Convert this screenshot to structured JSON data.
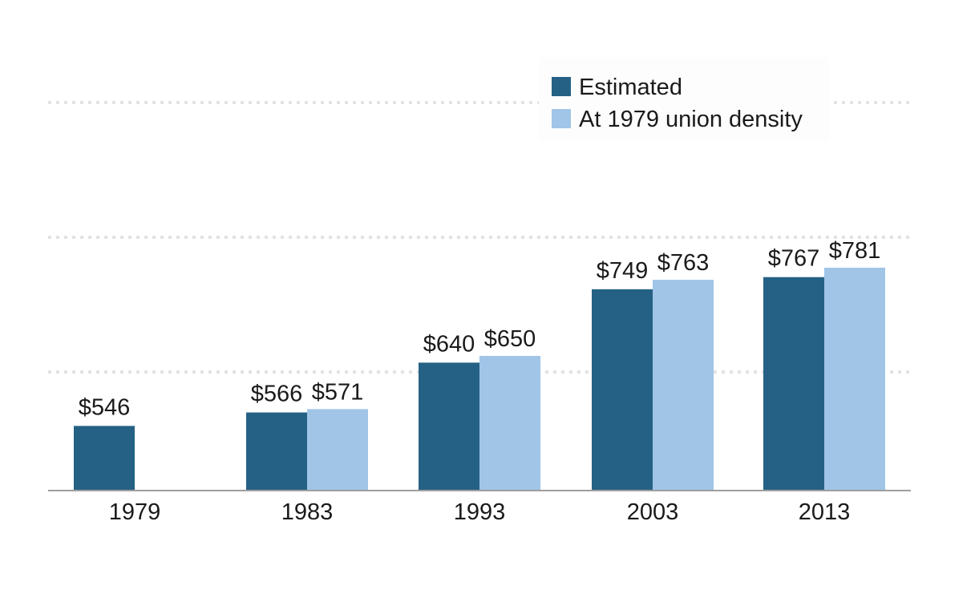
{
  "chart_data": {
    "type": "bar",
    "categories": [
      "1979",
      "1983",
      "1993",
      "2003",
      "2013"
    ],
    "series": [
      {
        "name": "Estimated",
        "color": "#256185",
        "values": [
          546,
          566,
          640,
          749,
          767
        ],
        "labels": [
          "$546",
          "$566",
          "$640",
          "$749",
          "$767"
        ]
      },
      {
        "name": "At 1979 union density",
        "color": "#a0c5e7",
        "values": [
          null,
          571,
          650,
          763,
          781
        ],
        "labels": [
          null,
          "$571",
          "$650",
          "$763",
          "$781"
        ]
      }
    ],
    "ylim": [
      450,
      900
    ],
    "gridlines": [
      600,
      800,
      1000
    ],
    "grid": true,
    "legend_position": "top-right",
    "title": "",
    "xlabel": "",
    "ylabel": ""
  }
}
